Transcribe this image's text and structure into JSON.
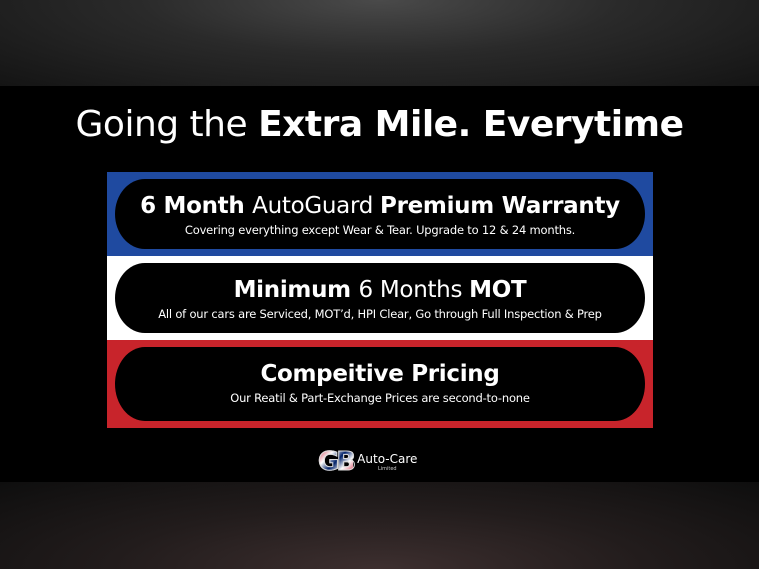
{
  "headline": {
    "light": "Going the ",
    "bold": "Extra Mile. Everytime"
  },
  "colors": {
    "blue": "#1f4aa0",
    "white": "#ffffff",
    "red": "#c8242b"
  },
  "features": [
    {
      "parts": [
        {
          "t": "6 Month ",
          "b": true
        },
        {
          "t": "AutoGuard ",
          "b": false
        },
        {
          "t": "Premium Warranty",
          "b": true
        }
      ],
      "subtitle": "Covering everything except Wear & Tear. Upgrade to 12 & 24 months."
    },
    {
      "parts": [
        {
          "t": "Minimum ",
          "b": true
        },
        {
          "t": "6 Months ",
          "b": false
        },
        {
          "t": "MOT",
          "b": true
        }
      ],
      "subtitle": "All of our cars are Serviced, MOT’d, HPI Clear, Go through Full Inspection & Prep"
    },
    {
      "parts": [
        {
          "t": "Compeitive Pricing",
          "b": true
        }
      ],
      "subtitle": "Our Reatil & Part-Exchange Prices are second-to-none"
    }
  ],
  "logo": {
    "mark": "GB",
    "name": "Auto-Care",
    "suffix": "Limited"
  }
}
